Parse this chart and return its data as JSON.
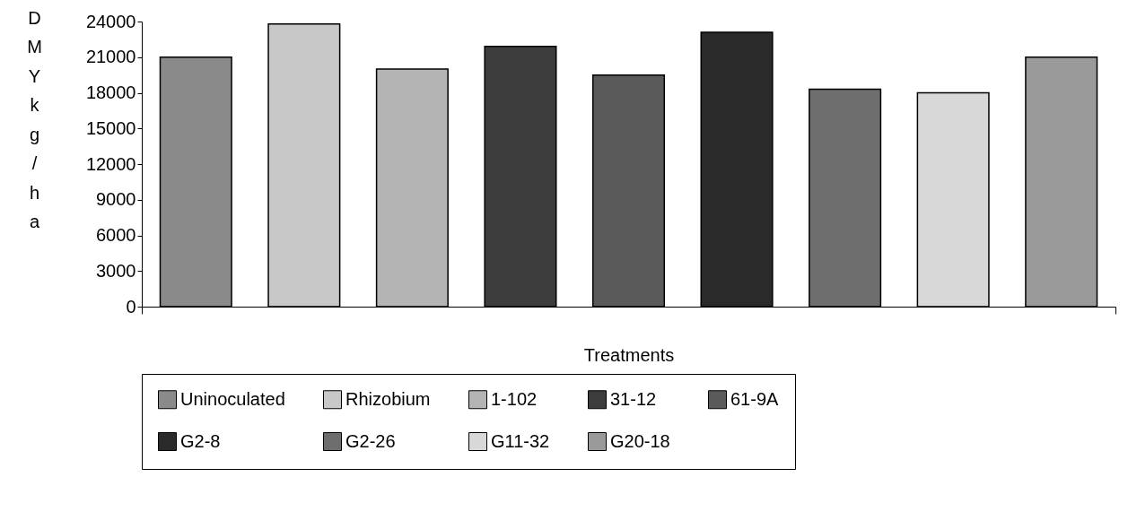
{
  "chart_data": {
    "type": "bar",
    "xlabel": "Treatments",
    "ylabel": "DMY kg/ha",
    "categories": [
      null
    ],
    "series": [
      {
        "name": "Uninoculated",
        "color": "#8a8a8a",
        "values": [
          21000
        ]
      },
      {
        "name": "Rhizobium",
        "color": "#c8c8c8",
        "values": [
          23800
        ]
      },
      {
        "name": "1-102",
        "color": "#b4b4b4",
        "values": [
          20000
        ]
      },
      {
        "name": "31-12",
        "color": "#3c3c3c",
        "values": [
          21900
        ]
      },
      {
        "name": "61-9A",
        "color": "#5a5a5a",
        "values": [
          19500
        ]
      },
      {
        "name": "G2-8",
        "color": "#2a2a2a",
        "values": [
          23100
        ]
      },
      {
        "name": "G2-26",
        "color": "#6e6e6e",
        "values": [
          18300
        ]
      },
      {
        "name": "G11-32",
        "color": "#d8d8d8",
        "values": [
          18000
        ]
      },
      {
        "name": "G20-18",
        "color": "#9a9a9a",
        "values": [
          21000
        ]
      }
    ],
    "ylim": [
      0,
      24000
    ],
    "yticks": [
      0,
      3000,
      6000,
      9000,
      12000,
      15000,
      18000,
      21000,
      24000
    ],
    "grid": false,
    "legend": "bottom",
    "tick_labels": "y"
  }
}
